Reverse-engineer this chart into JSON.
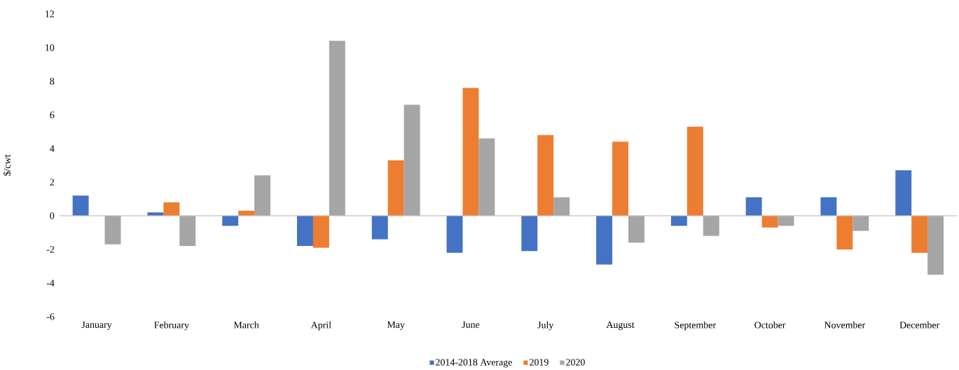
{
  "chart_data": {
    "type": "bar",
    "ylabel": "$/cwt",
    "categories": [
      "January",
      "February",
      "March",
      "April",
      "May",
      "June",
      "July",
      "August",
      "September",
      "October",
      "November",
      "December"
    ],
    "series": [
      {
        "name": "2014-2018 Average",
        "color": "#4472c4",
        "values": [
          1.2,
          0.2,
          -0.6,
          -1.8,
          -1.4,
          -2.2,
          -2.1,
          -2.9,
          -0.6,
          1.1,
          1.1,
          2.7
        ]
      },
      {
        "name": "2019",
        "color": "#ed7d31",
        "values": [
          null,
          0.8,
          0.3,
          -1.9,
          3.3,
          7.6,
          4.8,
          4.4,
          5.3,
          -0.7,
          -2.0,
          -2.2
        ]
      },
      {
        "name": "2020",
        "color": "#a5a5a5",
        "values": [
          -1.7,
          -1.8,
          2.4,
          10.4,
          6.6,
          4.6,
          1.1,
          -1.6,
          -1.2,
          -0.6,
          -0.9,
          -3.5
        ]
      }
    ],
    "ylim": [
      -6,
      12
    ],
    "yticks": [
      -6,
      -4,
      -2,
      0,
      2,
      4,
      6,
      8,
      10,
      12
    ],
    "legend": "bottom"
  }
}
